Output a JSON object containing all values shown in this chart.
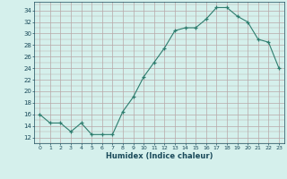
{
  "x": [
    0,
    1,
    2,
    3,
    4,
    5,
    6,
    7,
    8,
    9,
    10,
    11,
    12,
    13,
    14,
    15,
    16,
    17,
    18,
    19,
    20,
    21,
    22,
    23
  ],
  "y": [
    16,
    14.5,
    14.5,
    13,
    14.5,
    12.5,
    12.5,
    12.5,
    16.5,
    19,
    22.5,
    25,
    27.5,
    30.5,
    31,
    31,
    32.5,
    34.5,
    34.5,
    33,
    32,
    29,
    28.5,
    24
  ],
  "xlabel": "Humidex (Indice chaleur)",
  "xlim": [
    -0.5,
    23.5
  ],
  "ylim": [
    11,
    35.5
  ],
  "yticks": [
    12,
    14,
    16,
    18,
    20,
    22,
    24,
    26,
    28,
    30,
    32,
    34
  ],
  "xticks": [
    0,
    1,
    2,
    3,
    4,
    5,
    6,
    7,
    8,
    9,
    10,
    11,
    12,
    13,
    14,
    15,
    16,
    17,
    18,
    19,
    20,
    21,
    22,
    23
  ],
  "line_color": "#2d7d6e",
  "marker_color": "#2d7d6e",
  "bg_color": "#d5f0ec",
  "grid_color": "#b8a8a8",
  "tick_color": "#1a4a5a",
  "label_color": "#1a4a5a"
}
